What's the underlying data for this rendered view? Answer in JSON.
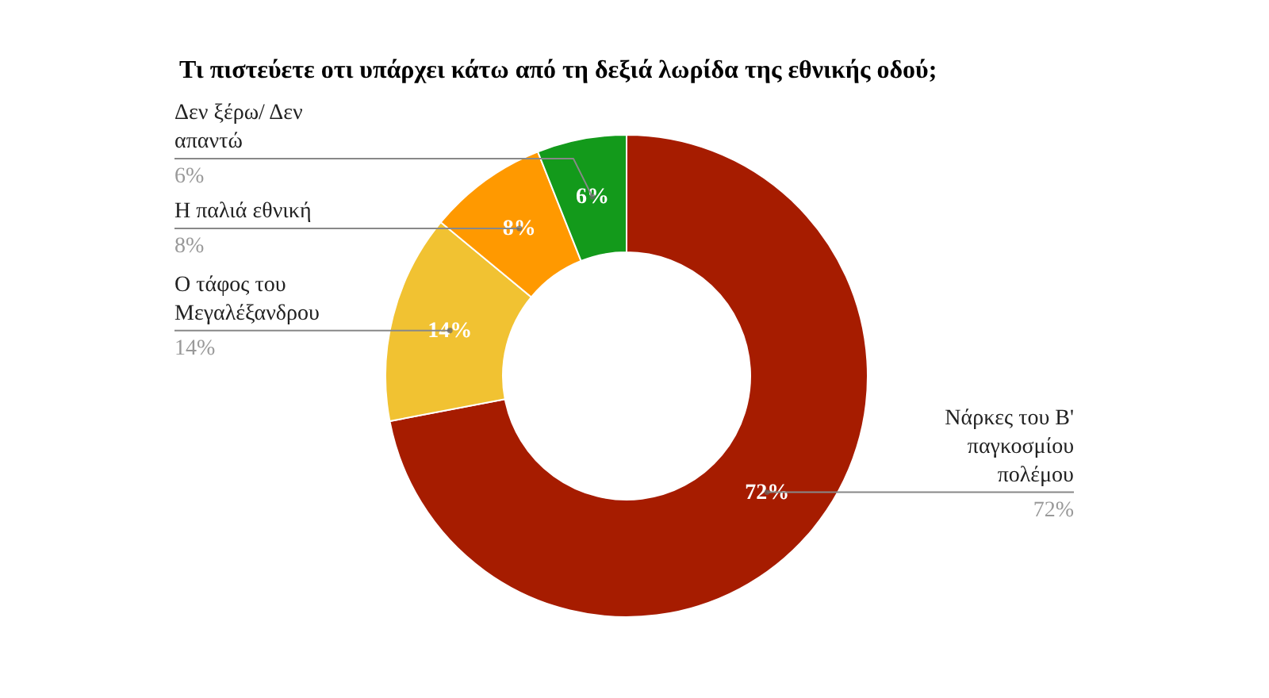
{
  "chart_data": {
    "type": "donut",
    "title": "Τι πιστεύετε οτι υπάρχει κάτω από τη δεξιά λωρίδα της εθνικής οδού;",
    "categories": [
      "Νάρκες του Β' παγκοσμίου πολέμου",
      "Ο τάφος του Μεγαλέξανδρου",
      "Η παλιά εθνική",
      "Δεν ξέρω/ Δεν απαντώ"
    ],
    "values": [
      72,
      14,
      8,
      6
    ],
    "colors": [
      "#a61c00",
      "#f1c232",
      "#ff9900",
      "#139a1b"
    ],
    "value_labels": [
      "72%",
      "14%",
      "8%",
      "6%"
    ]
  }
}
